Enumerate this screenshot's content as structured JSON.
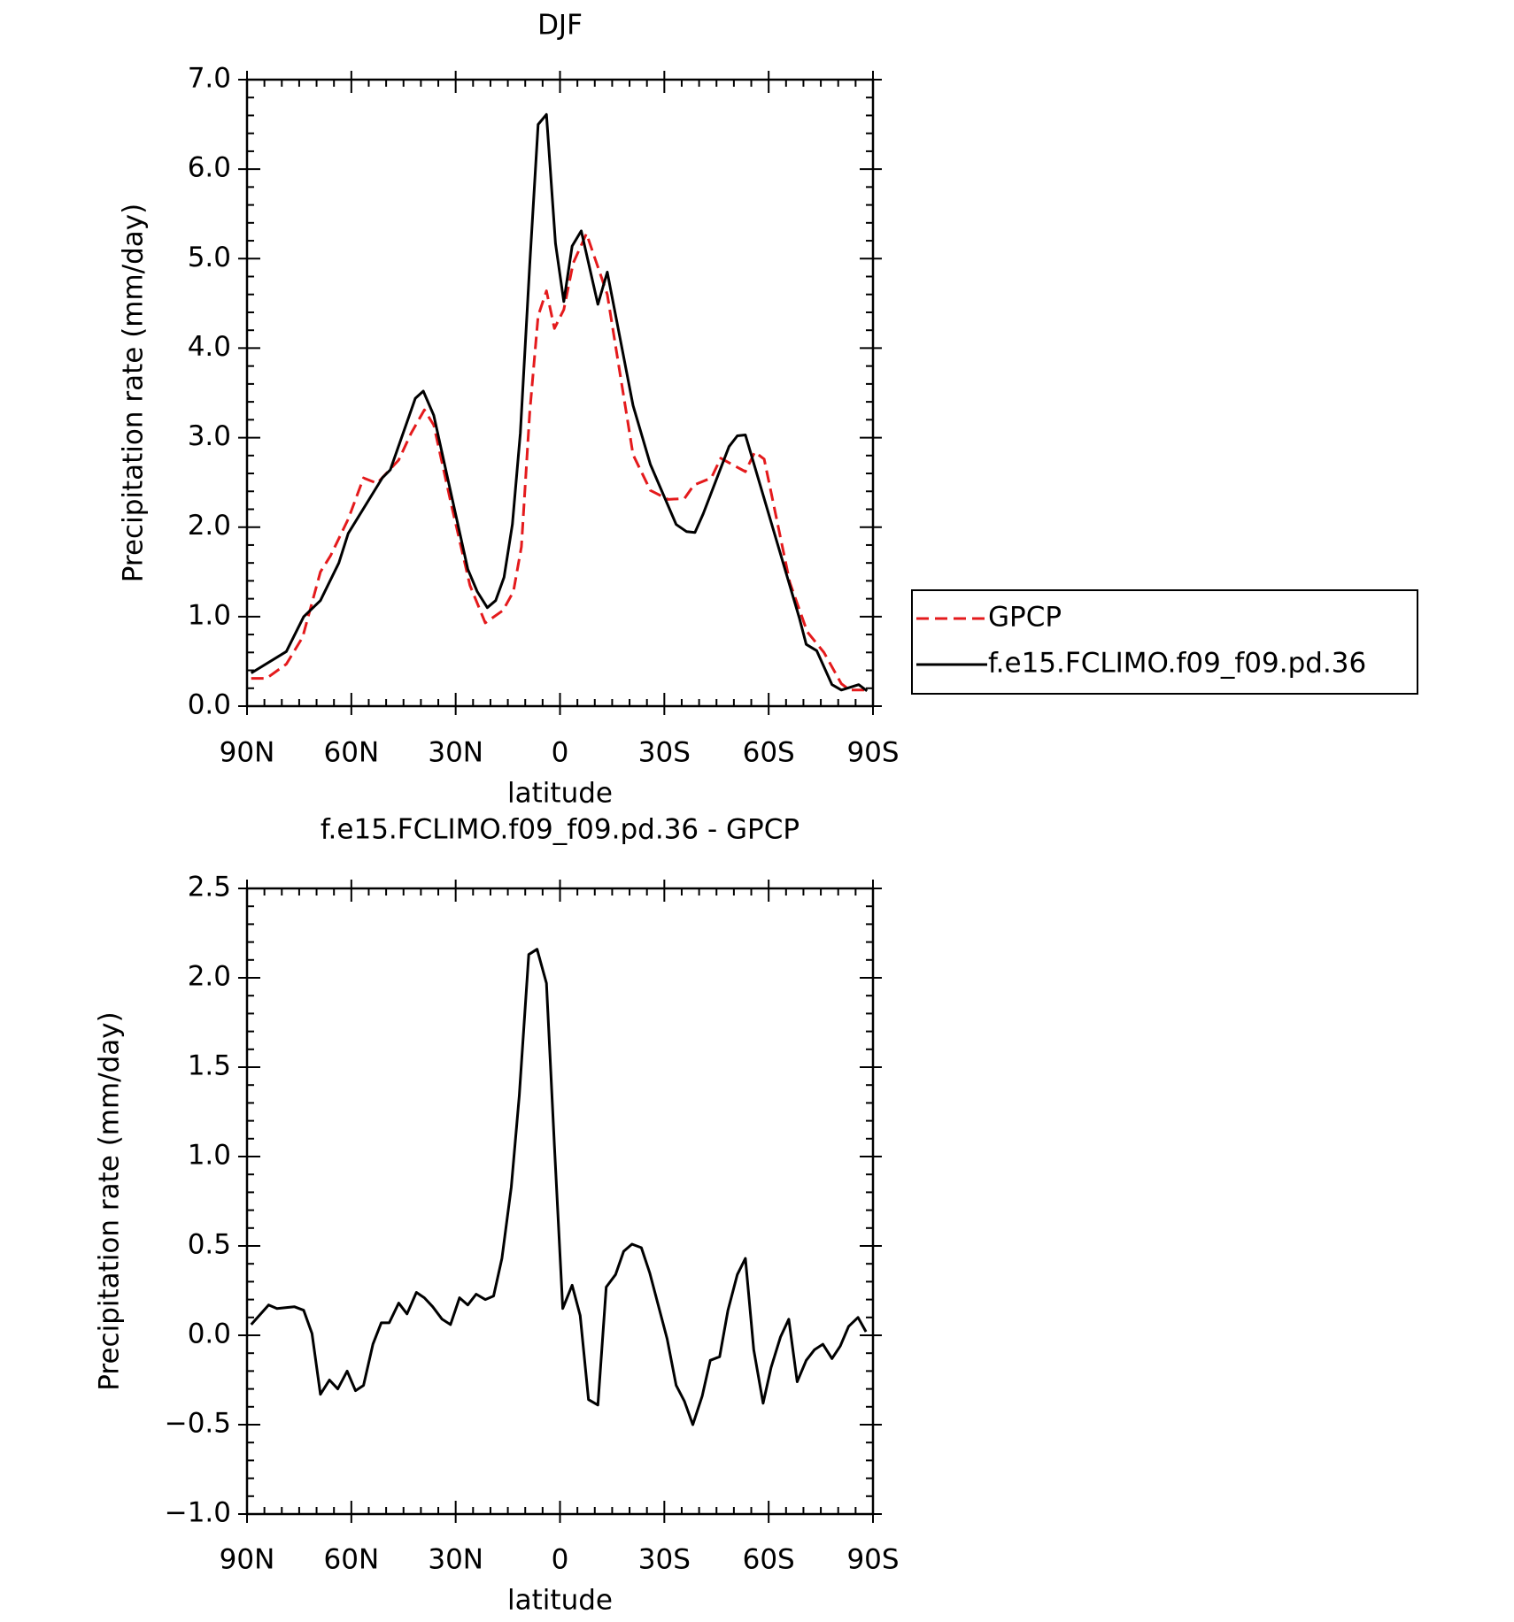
{
  "chart_data": [
    {
      "type": "line",
      "title": "DJF",
      "xlabel": "latitude",
      "ylabel": "Precipitation rate (mm/day)",
      "xlim": [
        90,
        -90
      ],
      "xticks": [
        {
          "value": 90,
          "label": "90N"
        },
        {
          "value": 60,
          "label": "60N"
        },
        {
          "value": 30,
          "label": "30N"
        },
        0,
        {
          "value": -30,
          "label": "30S"
        },
        {
          "value": -60,
          "label": "60S"
        },
        {
          "value": -90,
          "label": "90S"
        }
      ],
      "ylim": [
        0,
        7
      ],
      "yticks": [
        {
          "value": 0,
          "label": "0.0"
        },
        {
          "value": 1,
          "label": "1.0"
        },
        {
          "value": 2,
          "label": "2.0"
        },
        {
          "value": 3,
          "label": "3.0"
        },
        {
          "value": 4,
          "label": "4.0"
        },
        {
          "value": 5,
          "label": "5.0"
        },
        {
          "value": 6,
          "label": "6.0"
        },
        {
          "value": 7,
          "label": "7.0"
        }
      ],
      "series": [
        {
          "name": "GPCP",
          "color": "#e41a1c",
          "line_style": "dashed",
          "x": [
            88.8,
            84.4,
            78.7,
            74,
            68.9,
            66,
            60.9,
            56.5,
            52.6,
            46.4,
            42.8,
            39,
            36.3,
            31.2,
            25.9,
            21.5,
            16.4,
            13.4,
            11.1,
            8.7,
            6.3,
            3.9,
            1.6,
            -1.1,
            -3.8,
            -7.6,
            -13.6,
            -18.6,
            -21,
            -26,
            -31.1,
            -35.8,
            -38.5,
            -43.5,
            -46.2,
            -53.3,
            -56,
            -58.7,
            -66.1,
            -71.1,
            -75.9,
            -80.9,
            -83.3,
            -88.3
          ],
          "values": [
            0.31,
            0.31,
            0.47,
            0.77,
            1.5,
            1.68,
            2.09,
            2.55,
            2.49,
            2.75,
            3.05,
            3.31,
            3.14,
            2.24,
            1.35,
            0.93,
            1.07,
            1.28,
            1.78,
            3.28,
            4.36,
            4.64,
            4.22,
            4.43,
            4.95,
            5.28,
            4.6,
            3.39,
            2.81,
            2.41,
            2.31,
            2.32,
            2.47,
            2.55,
            2.77,
            2.62,
            2.84,
            2.76,
            1.38,
            0.83,
            0.6,
            0.25,
            0.18,
            0.18
          ]
        },
        {
          "name": "f.e15.FCLIMO.f09_f09.pd.36",
          "color": "#000000",
          "line_style": "solid",
          "x": [
            88.8,
            78.7,
            73.7,
            68.9,
            63.6,
            60.9,
            51.1,
            48.8,
            41.6,
            39.3,
            36.3,
            31.2,
            26.5,
            23.8,
            20.9,
            18.5,
            16.1,
            13.7,
            11.4,
            8.7,
            6.3,
            3.9,
            1.3,
            -1.1,
            -3.5,
            -6.1,
            -10.9,
            -13.6,
            -21,
            -26,
            -33.4,
            -36.4,
            -38.8,
            -41.2,
            -48.6,
            -51,
            -53.3,
            -68.8,
            -70.8,
            -73.8,
            -78.2,
            -80.9,
            -85.9,
            -88.3
          ],
          "values": [
            0.37,
            0.61,
            1.0,
            1.18,
            1.6,
            1.93,
            2.55,
            2.64,
            3.44,
            3.52,
            3.25,
            2.35,
            1.53,
            1.28,
            1.1,
            1.18,
            1.44,
            2.03,
            3.05,
            4.93,
            6.5,
            6.61,
            5.17,
            4.52,
            5.14,
            5.31,
            4.49,
            4.85,
            3.36,
            2.7,
            2.03,
            1.95,
            1.94,
            2.15,
            2.9,
            3.02,
            3.03,
            0.99,
            0.69,
            0.62,
            0.24,
            0.18,
            0.24,
            0.17
          ]
        }
      ]
    },
    {
      "type": "line",
      "title": "f.e15.FCLIMO.f09_f09.pd.36 - GPCP",
      "xlabel": "latitude",
      "ylabel": "Precipitation rate (mm/day)",
      "xlim": [
        90,
        -90
      ],
      "xticks": [
        {
          "value": 90,
          "label": "90N"
        },
        {
          "value": 60,
          "label": "60N"
        },
        {
          "value": 30,
          "label": "30N"
        },
        0,
        {
          "value": -30,
          "label": "30S"
        },
        {
          "value": -60,
          "label": "60S"
        },
        {
          "value": -90,
          "label": "90S"
        }
      ],
      "ylim": [
        -1,
        2.5
      ],
      "yticks": [
        {
          "value": -1,
          "label": "−1.0"
        },
        {
          "value": -0.5,
          "label": "−0.5"
        },
        {
          "value": 0,
          "label": "0.0"
        },
        {
          "value": 0.5,
          "label": "0.5"
        },
        {
          "value": 1,
          "label": "1.0"
        },
        {
          "value": 1.5,
          "label": "1.5"
        },
        {
          "value": 2,
          "label": "2.0"
        },
        {
          "value": 2.5,
          "label": "2.5"
        }
      ],
      "series": [
        {
          "color": "#000000",
          "line_style": "solid",
          "x": [
            88.8,
            83.8,
            81.4,
            76.4,
            73.7,
            71.3,
            68.9,
            66.3,
            63.9,
            61.2,
            58.8,
            56.5,
            53.8,
            51.4,
            49.1,
            46.4,
            44,
            41.3,
            39,
            36.6,
            33.9,
            31.5,
            28.9,
            26.5,
            24.1,
            21.5,
            19.1,
            16.7,
            14,
            11.7,
            9,
            6.6,
            3.9,
            1.6,
            -0.8,
            -3.5,
            -5.8,
            -8.2,
            -10.9,
            -13.3,
            -16,
            -18.3,
            -20.7,
            -23.4,
            -25.8,
            -30.8,
            -33.4,
            -35.8,
            -38.2,
            -40.9,
            -43.2,
            -45.9,
            -48.3,
            -51,
            -53.3,
            -55.7,
            -58.4,
            -60.7,
            -63.4,
            -65.8,
            -68.2,
            -70.8,
            -73.2,
            -75.6,
            -78.2,
            -80.6,
            -83,
            -85.7,
            -88
          ],
          "values": [
            0.06,
            0.17,
            0.15,
            0.16,
            0.14,
            0.01,
            -0.33,
            -0.25,
            -0.3,
            -0.2,
            -0.31,
            -0.28,
            -0.05,
            0.07,
            0.07,
            0.18,
            0.12,
            0.24,
            0.21,
            0.16,
            0.09,
            0.06,
            0.21,
            0.17,
            0.23,
            0.2,
            0.22,
            0.43,
            0.83,
            1.34,
            2.13,
            2.16,
            1.97,
            1.06,
            0.15,
            0.28,
            0.11,
            -0.36,
            -0.39,
            0.27,
            0.34,
            0.47,
            0.51,
            0.49,
            0.35,
            -0.02,
            -0.28,
            -0.37,
            -0.5,
            -0.34,
            -0.14,
            -0.12,
            0.14,
            0.34,
            0.43,
            -0.08,
            -0.38,
            -0.18,
            -0.01,
            0.09,
            -0.26,
            -0.14,
            -0.08,
            -0.05,
            -0.13,
            -0.06,
            0.05,
            0.1,
            0.02
          ]
        }
      ]
    }
  ]
}
